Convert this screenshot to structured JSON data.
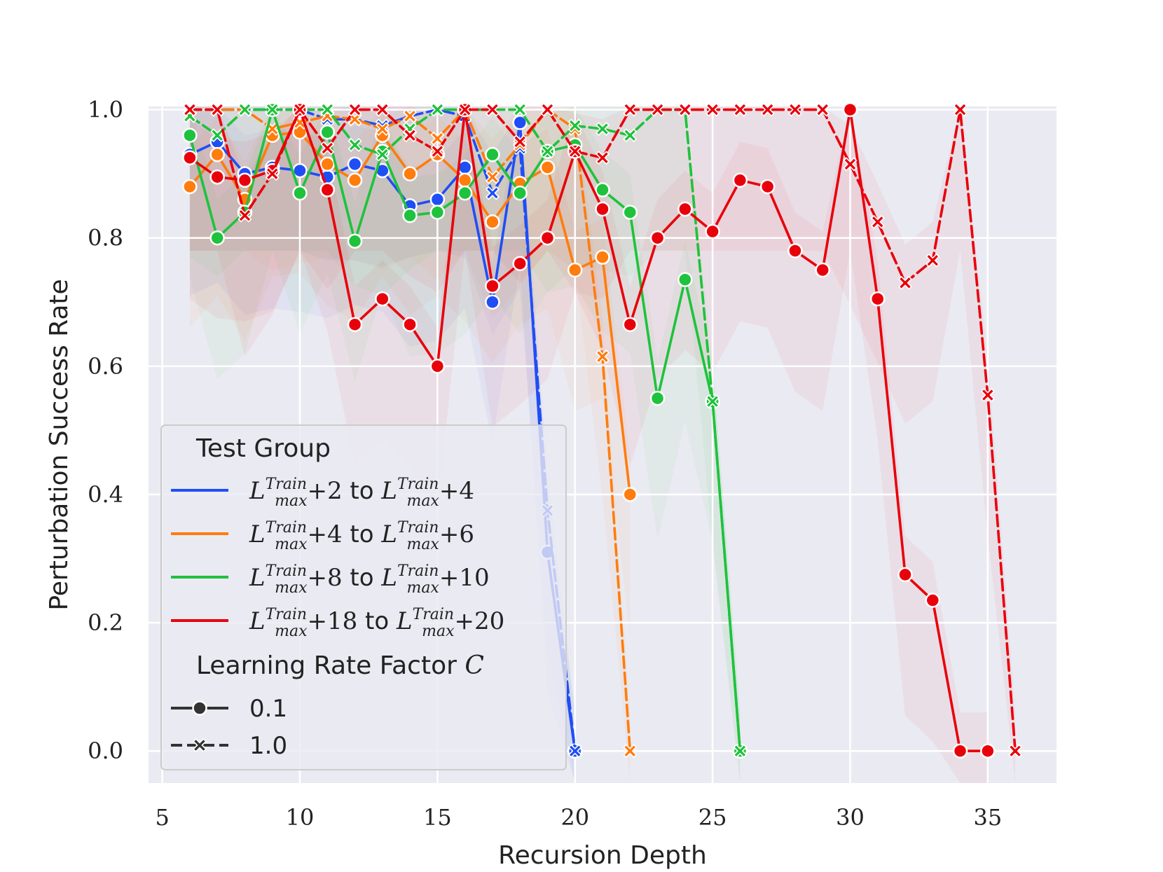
{
  "chart_data": {
    "type": "line",
    "title": "",
    "xlabel": "Recursion Depth",
    "ylabel": "Perturbation Success Rate",
    "xlim": [
      4.5,
      37.5
    ],
    "ylim": [
      -0.05,
      1.005
    ],
    "xticks": [
      5,
      10,
      15,
      20,
      25,
      30,
      35
    ],
    "xtick_labels": [
      "5",
      "10",
      "15",
      "20",
      "25",
      "30",
      "35"
    ],
    "yticks": [
      0.0,
      0.2,
      0.4,
      0.6,
      0.8,
      1.0
    ],
    "ytick_labels": [
      "0.0",
      "0.2",
      "0.4",
      "0.6",
      "0.8",
      "1.0"
    ],
    "grid": true,
    "legend": {
      "placement": "lower-left",
      "hue_title": "Test Group",
      "style_title": "Learning Rate Factor C",
      "hue_entries": [
        {
          "label": "L_max^Train+2 to L_max^Train+4",
          "base": "L",
          "sup": "Train",
          "sub": "max",
          "a": "+2",
          "mid": " to ",
          "b": "+4",
          "color": "#1f4ef5"
        },
        {
          "label": "L_max^Train+4 to L_max^Train+6",
          "base": "L",
          "sup": "Train",
          "sub": "max",
          "a": "+4",
          "mid": " to ",
          "b": "+6",
          "color": "#ff7c0d"
        },
        {
          "label": "L_max^Train+8 to L_max^Train+10",
          "base": "L",
          "sup": "Train",
          "sub": "max",
          "a": "+8",
          "mid": " to ",
          "b": "+10",
          "color": "#1fc23c"
        },
        {
          "label": "L_max^Train+18 to L_max^Train+20",
          "base": "L",
          "sup": "Train",
          "sub": "max",
          "a": "+18",
          "mid": " to ",
          "b": "+20",
          "color": "#e8000b"
        }
      ],
      "style_entries": [
        {
          "label": "0.1",
          "marker": "circle",
          "dash": "solid"
        },
        {
          "label": "1.0",
          "marker": "x",
          "dash": "dashed"
        }
      ]
    },
    "series": [
      {
        "name": "L_max^Train+2 to L_max^Train+4, C=0.1",
        "color": "#1f4ef5",
        "style": "solid",
        "marker": "circle",
        "x": [
          6,
          7,
          8,
          9,
          10,
          11,
          12,
          13,
          14,
          15,
          16,
          17,
          18,
          19,
          20
        ],
        "y": [
          0.93,
          0.95,
          0.9,
          0.91,
          0.905,
          0.895,
          0.915,
          0.905,
          0.85,
          0.86,
          0.91,
          0.7,
          0.98,
          0.31,
          0.0
        ]
      },
      {
        "name": "L_max^Train+2 to L_max^Train+4, C=1.0",
        "color": "#1f4ef5",
        "style": "dashed",
        "marker": "x",
        "x": [
          6,
          7,
          8,
          9,
          10,
          11,
          12,
          13,
          14,
          15,
          16,
          17,
          18,
          19,
          20
        ],
        "y": [
          1.0,
          1.0,
          1.0,
          1.0,
          1.0,
          0.985,
          0.985,
          0.975,
          0.99,
          1.0,
          0.99,
          0.87,
          0.94,
          0.375,
          0.0
        ]
      },
      {
        "name": "L_max^Train+4 to L_max^Train+6, C=0.1",
        "color": "#ff7c0d",
        "style": "solid",
        "marker": "circle",
        "x": [
          6,
          7,
          8,
          9,
          10,
          11,
          12,
          13,
          14,
          15,
          16,
          17,
          18,
          19,
          20,
          21,
          22
        ],
        "y": [
          0.88,
          0.93,
          0.86,
          0.96,
          0.965,
          0.915,
          0.89,
          0.96,
          0.9,
          0.93,
          0.89,
          0.825,
          0.885,
          0.91,
          0.75,
          0.77,
          0.4
        ]
      },
      {
        "name": "L_max^Train+4 to L_max^Train+6, C=1.0",
        "color": "#ff7c0d",
        "style": "dashed",
        "marker": "x",
        "x": [
          6,
          7,
          8,
          9,
          10,
          11,
          12,
          13,
          14,
          15,
          16,
          17,
          18,
          19,
          20,
          21,
          22
        ],
        "y": [
          1.0,
          1.0,
          1.0,
          0.97,
          0.98,
          0.99,
          0.985,
          0.97,
          0.99,
          0.955,
          1.0,
          0.895,
          0.945,
          1.0,
          0.97,
          0.615,
          0.0
        ]
      },
      {
        "name": "L_max^Train+8 to L_max^Train+10, C=0.1",
        "color": "#1fc23c",
        "style": "solid",
        "marker": "circle",
        "x": [
          6,
          7,
          8,
          9,
          10,
          11,
          12,
          13,
          14,
          15,
          16,
          17,
          18,
          19,
          20,
          21,
          22,
          23,
          24,
          25,
          26
        ],
        "y": [
          0.96,
          0.8,
          0.84,
          1.0,
          0.87,
          0.965,
          0.795,
          0.935,
          0.835,
          0.84,
          0.87,
          0.93,
          0.87,
          0.935,
          0.945,
          0.875,
          0.84,
          0.55,
          0.735,
          0.545,
          0.0
        ]
      },
      {
        "name": "L_max^Train+8 to L_max^Train+10, C=1.0",
        "color": "#1fc23c",
        "style": "dashed",
        "marker": "x",
        "x": [
          6,
          7,
          8,
          9,
          10,
          11,
          12,
          13,
          14,
          15,
          16,
          17,
          18,
          19,
          20,
          21,
          22,
          23,
          24,
          25,
          26
        ],
        "y": [
          0.99,
          0.96,
          1.0,
          1.0,
          1.0,
          1.0,
          0.945,
          0.93,
          0.97,
          1.0,
          1.0,
          1.0,
          1.0,
          0.935,
          0.975,
          0.97,
          0.96,
          1.0,
          1.0,
          0.545,
          0.0
        ]
      },
      {
        "name": "L_max^Train+18 to L_max^Train+20, C=0.1",
        "color": "#e8000b",
        "style": "solid",
        "marker": "circle",
        "x": [
          6,
          7,
          8,
          9,
          10,
          11,
          12,
          13,
          14,
          15,
          16,
          17,
          18,
          19,
          20,
          21,
          22,
          23,
          24,
          25,
          26,
          27,
          28,
          29,
          30,
          31,
          32,
          33,
          34,
          35
        ],
        "y": [
          0.925,
          0.895,
          0.89,
          0.905,
          1.0,
          0.875,
          0.665,
          0.705,
          0.665,
          0.6,
          1.0,
          0.725,
          0.76,
          0.8,
          0.935,
          0.845,
          0.665,
          0.8,
          0.845,
          0.81,
          0.89,
          0.88,
          0.78,
          0.75,
          1.0,
          0.705,
          0.275,
          0.235,
          0.0,
          0.0
        ]
      },
      {
        "name": "L_max^Train+18 to L_max^Train+20, C=1.0",
        "color": "#e8000b",
        "style": "dashed",
        "marker": "x",
        "x": [
          6,
          7,
          8,
          9,
          10,
          11,
          12,
          13,
          14,
          15,
          16,
          17,
          18,
          19,
          20,
          21,
          22,
          23,
          24,
          25,
          26,
          27,
          28,
          29,
          30,
          31,
          32,
          33,
          34,
          35,
          36
        ],
        "y": [
          1.0,
          1.0,
          0.835,
          0.9,
          1.0,
          0.94,
          1.0,
          1.0,
          0.96,
          0.935,
          1.0,
          1.0,
          0.95,
          1.0,
          0.935,
          0.925,
          1.0,
          1.0,
          1.0,
          1.0,
          1.0,
          1.0,
          1.0,
          1.0,
          0.915,
          0.825,
          0.73,
          0.765,
          1.0,
          0.555,
          0.0
        ]
      }
    ]
  }
}
